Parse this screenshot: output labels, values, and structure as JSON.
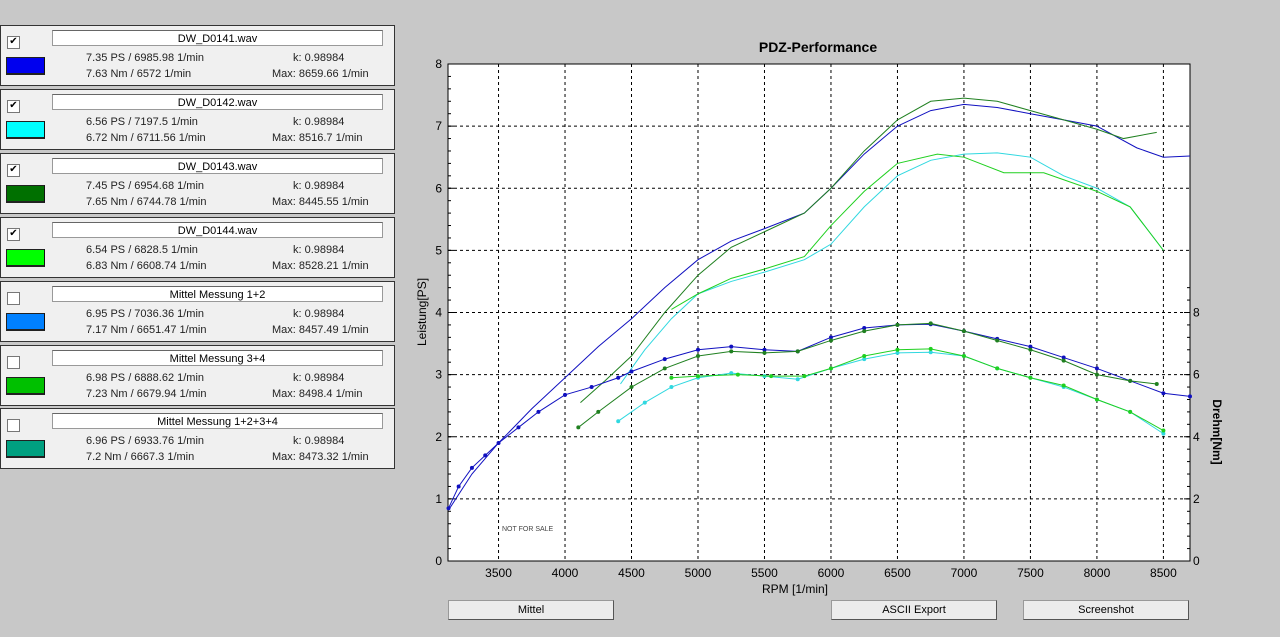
{
  "measurements": [
    {
      "checked": true,
      "name": "DW_D0141.wav",
      "color": "#0000ee",
      "line1": "7.35 PS / 6985.98 1/min",
      "line2": "7.63 Nm / 6572 1/min",
      "k": "k: 0.98984",
      "max": "Max: 8659.66 1/min"
    },
    {
      "checked": true,
      "name": "DW_D0142.wav",
      "color": "#00ffff",
      "line1": "6.56 PS / 7197.5 1/min",
      "line2": "6.72 Nm / 6711.56 1/min",
      "k": "k: 0.98984",
      "max": "Max: 8516.7 1/min"
    },
    {
      "checked": true,
      "name": "DW_D0143.wav",
      "color": "#007000",
      "line1": "7.45 PS / 6954.68 1/min",
      "line2": "7.65 Nm / 6744.78 1/min",
      "k": "k: 0.98984",
      "max": "Max: 8445.55 1/min"
    },
    {
      "checked": true,
      "name": "DW_D0144.wav",
      "color": "#00ff00",
      "line1": "6.54 PS / 6828.5 1/min",
      "line2": "6.83 Nm / 6608.74 1/min",
      "k": "k: 0.98984",
      "max": "Max: 8528.21 1/min"
    },
    {
      "checked": false,
      "name": "Mittel Messung 1+2",
      "color": "#0080ff",
      "line1": "6.95 PS / 7036.36 1/min",
      "line2": "7.17 Nm / 6651.47 1/min",
      "k": "k: 0.98984",
      "max": "Max: 8457.49 1/min"
    },
    {
      "checked": false,
      "name": "Mittel Messung 3+4",
      "color": "#00c000",
      "line1": "6.98 PS / 6888.62 1/min",
      "line2": "7.23 Nm / 6679.94 1/min",
      "k": "k: 0.98984",
      "max": "Max: 8498.4 1/min"
    },
    {
      "checked": false,
      "name": "Mittel Messung 1+2+3+4",
      "color": "#00a080",
      "line1": "6.96 PS / 6933.76 1/min",
      "line2": "7.2 Nm / 6667.3 1/min",
      "k": "k: 0.98984",
      "max": "Max: 8473.32 1/min"
    }
  ],
  "buttons": {
    "mittel": "Mittel",
    "ascii": "ASCII Export",
    "screenshot": "Screenshot"
  },
  "chart_data": {
    "type": "line",
    "title": "PDZ-Performance",
    "xlabel": "RPM [1/min]",
    "ylabel": "Leistung[PS]",
    "y2label": "Drehm[Nm]",
    "watermark": "NOT FOR SALE",
    "xlim": [
      3120,
      8700
    ],
    "ylim": [
      0,
      8
    ],
    "y2lim": [
      0,
      16
    ],
    "xticks": [
      3500,
      4000,
      4500,
      5000,
      5500,
      6000,
      6500,
      7000,
      7500,
      8000,
      8500
    ],
    "yticks": [
      0,
      1,
      2,
      3,
      4,
      5,
      6,
      7,
      8
    ],
    "y2ticks": [
      0,
      2,
      4,
      6,
      8
    ],
    "grid": true,
    "power_series": [
      {
        "name": "DW_D0141.wav",
        "color": "#1010c0",
        "x": [
          3124,
          3300,
          3500,
          3750,
          4000,
          4250,
          4500,
          4750,
          5000,
          5250,
          5500,
          5800,
          6000,
          6250,
          6500,
          6750,
          7000,
          7250,
          7500,
          7750,
          8000,
          8300,
          8500,
          8700
        ],
        "y": [
          0.82,
          1.4,
          1.9,
          2.45,
          2.95,
          3.45,
          3.9,
          4.4,
          4.85,
          5.15,
          5.35,
          5.6,
          6.0,
          6.55,
          7.0,
          7.25,
          7.35,
          7.3,
          7.2,
          7.1,
          7.0,
          6.65,
          6.5,
          6.52
        ]
      },
      {
        "name": "DW_D0142.wav",
        "color": "#30d8e0",
        "x": [
          4417,
          4600,
          4800,
          5000,
          5250,
          5500,
          5800,
          6000,
          6250,
          6500,
          6750,
          7000,
          7250,
          7500,
          7750,
          8000,
          8250,
          8500
        ],
        "y": [
          2.85,
          3.4,
          3.9,
          4.3,
          4.5,
          4.65,
          4.85,
          5.1,
          5.7,
          6.2,
          6.45,
          6.55,
          6.57,
          6.5,
          6.2,
          6.0,
          5.7,
          5.0
        ]
      },
      {
        "name": "DW_D0143.wav",
        "color": "#208020",
        "x": [
          4116,
          4300,
          4500,
          4750,
          5000,
          5250,
          5500,
          5800,
          6000,
          6250,
          6500,
          6750,
          7000,
          7250,
          7500,
          7750,
          8000,
          8200,
          8450
        ],
        "y": [
          2.55,
          2.9,
          3.3,
          4.0,
          4.6,
          5.05,
          5.3,
          5.6,
          6.0,
          6.6,
          7.1,
          7.4,
          7.45,
          7.4,
          7.25,
          7.1,
          6.95,
          6.8,
          6.9
        ]
      },
      {
        "name": "DW_D0144.wav",
        "color": "#20d020",
        "x": [
          4800,
          5000,
          5250,
          5500,
          5800,
          6000,
          6250,
          6500,
          6800,
          7000,
          7300,
          7600,
          8000,
          8250,
          8500
        ],
        "y": [
          4.05,
          4.3,
          4.55,
          4.7,
          4.9,
          5.4,
          5.95,
          6.4,
          6.55,
          6.5,
          6.25,
          6.25,
          5.95,
          5.7,
          5.0
        ]
      }
    ],
    "torque_series": [
      {
        "name": "DW_D0141.wav",
        "color": "#1010c0",
        "x": [
          3124,
          3200,
          3300,
          3400,
          3500,
          3650,
          3800,
          4000,
          4200,
          4400,
          4500,
          4750,
          5000,
          5250,
          5500,
          5750,
          6000,
          6250,
          6500,
          6750,
          7000,
          7250,
          7500,
          7750,
          8000,
          8250,
          8500,
          8700
        ],
        "y": [
          1.7,
          2.4,
          3.0,
          3.4,
          3.8,
          4.3,
          4.8,
          5.35,
          5.6,
          5.9,
          6.1,
          6.5,
          6.8,
          6.9,
          6.8,
          6.75,
          7.2,
          7.5,
          7.6,
          7.62,
          7.4,
          7.15,
          6.9,
          6.55,
          6.2,
          5.8,
          5.4,
          5.3
        ]
      },
      {
        "name": "DW_D0142.wav",
        "color": "#30d8e0",
        "x": [
          4400,
          4600,
          4800,
          5000,
          5250,
          5500,
          5750,
          6000,
          6250,
          6500,
          6750,
          7000,
          7250,
          7500,
          7750,
          8000,
          8250,
          8500
        ],
        "y": [
          4.5,
          5.1,
          5.6,
          5.9,
          6.05,
          5.95,
          5.85,
          6.2,
          6.5,
          6.7,
          6.72,
          6.6,
          6.2,
          5.9,
          5.6,
          5.2,
          4.8,
          4.1
        ]
      },
      {
        "name": "DW_D0143.wav",
        "color": "#208020",
        "x": [
          4100,
          4250,
          4500,
          4750,
          5000,
          5250,
          5500,
          5750,
          6000,
          6250,
          6500,
          6750,
          7000,
          7250,
          7500,
          7750,
          8000,
          8250,
          8450
        ],
        "y": [
          4.3,
          4.8,
          5.6,
          6.2,
          6.6,
          6.75,
          6.7,
          6.75,
          7.1,
          7.4,
          7.6,
          7.65,
          7.4,
          7.1,
          6.8,
          6.45,
          6.0,
          5.8,
          5.7
        ]
      },
      {
        "name": "DW_D0144.wav",
        "color": "#20d020",
        "x": [
          4800,
          5000,
          5300,
          5550,
          5800,
          6000,
          6250,
          6500,
          6750,
          7000,
          7250,
          7500,
          7750,
          8000,
          8250,
          8500
        ],
        "y": [
          5.9,
          5.95,
          6.0,
          5.95,
          5.95,
          6.2,
          6.6,
          6.8,
          6.83,
          6.6,
          6.2,
          5.9,
          5.65,
          5.2,
          4.8,
          4.2
        ]
      }
    ]
  }
}
